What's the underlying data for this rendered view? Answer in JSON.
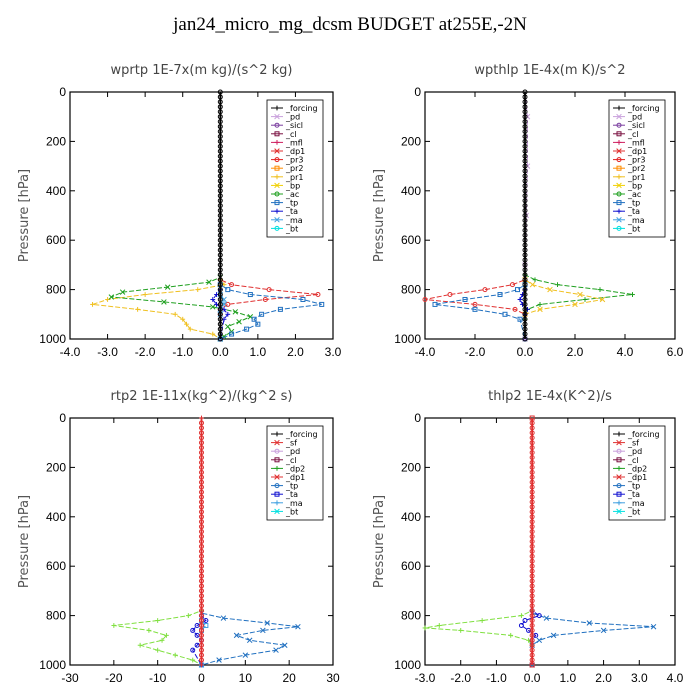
{
  "figure_title": "jan24_micro_mg_dcsm  BUDGET at255E,-2N",
  "colors": {
    "_forcing": "#000000",
    "_pd": "#c9a0dc",
    "_sicl": "#7b3fa0",
    "_cl": "#7a1040",
    "_mfl": "#d02060",
    "_dp1": "#e03030",
    "_pr3": "#e02020",
    "_pr2": "#ff8c00",
    "_pr1": "#f0c020",
    "_bp": "#f0d000",
    "_ac": "#20a020",
    "_tp": "#2070c0",
    "_ta": "#1010d0",
    "_ma": "#40a0e0",
    "_bt": "#00e0e0",
    "_sf": "#e03030",
    "_dp2": "#20a020",
    "_dp1g": "#80e040"
  },
  "chart_data": [
    {
      "type": "line",
      "title": "wprtp  1E-7x(m kg)/(s^2 kg)",
      "ylabel": "Pressure [hPa]",
      "xlim": [
        -4,
        3
      ],
      "ylim": [
        1000,
        0
      ],
      "xticks": [
        "-4.0",
        "-3.0",
        "-2.0",
        "-1.0",
        "0.0",
        "1.0",
        "2.0",
        "3.0"
      ],
      "xtick_values": [
        -4,
        -3,
        -2,
        -1,
        0,
        1,
        2,
        3
      ],
      "yticks": [
        "0",
        "200",
        "400",
        "600",
        "800",
        "1000"
      ],
      "ytick_values": [
        0,
        200,
        400,
        600,
        800,
        1000
      ],
      "legend": [
        "_forcing",
        "_pd",
        "_sicl",
        "_cl",
        "_mfl",
        "_dp1",
        "_pr3",
        "_pr2",
        "_pr1",
        "_bp",
        "_ac",
        "_tp",
        "_ta",
        "_ma",
        "_bt"
      ],
      "series": [
        {
          "name": "_pr1",
          "color": "#f0c020",
          "p": [
            0,
            760,
            780,
            800,
            820,
            840,
            860,
            880,
            900,
            920,
            940,
            960,
            980,
            1000
          ],
          "x": [
            0,
            0,
            0.1,
            -0.6,
            -2.0,
            -3.0,
            -3.4,
            -2.2,
            -1.2,
            -1.0,
            -0.9,
            -0.8,
            -0.2,
            0
          ]
        },
        {
          "name": "_ac",
          "color": "#20a020",
          "p": [
            0,
            750,
            770,
            790,
            810,
            830,
            850,
            870,
            890,
            910,
            930,
            950,
            970,
            990,
            1000
          ],
          "x": [
            0,
            0,
            -0.3,
            -1.4,
            -2.6,
            -2.9,
            -1.5,
            -0.2,
            0.4,
            0.8,
            0.5,
            0.2,
            0.3,
            0.1,
            0
          ]
        },
        {
          "name": "_dp1",
          "color": "#e03030",
          "p": [
            0,
            760,
            780,
            800,
            820,
            840,
            860,
            880,
            900,
            1000
          ],
          "x": [
            0,
            0,
            0.3,
            1.3,
            2.6,
            1.2,
            0.2,
            0,
            0,
            0
          ]
        },
        {
          "name": "_tp",
          "color": "#2070c0",
          "p": [
            0,
            780,
            800,
            820,
            840,
            860,
            880,
            900,
            920,
            940,
            960,
            980,
            1000
          ],
          "x": [
            0,
            0,
            0.2,
            0.8,
            2.2,
            2.7,
            1.6,
            1.1,
            0.9,
            1.0,
            0.7,
            0.3,
            0
          ]
        },
        {
          "name": "_ta",
          "color": "#1010d0",
          "p": [
            0,
            800,
            820,
            840,
            860,
            880,
            900,
            920,
            1000
          ],
          "x": [
            0,
            0,
            -0.1,
            -0.2,
            -0.1,
            0.1,
            0.2,
            0.1,
            0
          ]
        },
        {
          "name": "_ma",
          "color": "#40a0e0",
          "p": [
            0,
            820,
            840,
            860,
            880,
            900,
            1000
          ],
          "x": [
            0,
            0,
            0.1,
            0.1,
            0,
            0,
            0
          ]
        },
        {
          "name": "_forcing",
          "color": "#000000",
          "p": [
            0,
            1000
          ],
          "x": [
            0,
            0
          ]
        }
      ]
    },
    {
      "type": "line",
      "title": "wpthlp  1E-4x(m K)/s^2",
      "ylabel": "Pressure [hPa]",
      "xlim": [
        -4,
        6
      ],
      "ylim": [
        1000,
        0
      ],
      "xticks": [
        "-4.0",
        "-2.0",
        "0.0",
        "2.0",
        "4.0",
        "6.0"
      ],
      "xtick_values": [
        -4,
        -2,
        0,
        2,
        4,
        6
      ],
      "yticks": [
        "0",
        "200",
        "400",
        "600",
        "800",
        "1000"
      ],
      "ytick_values": [
        0,
        200,
        400,
        600,
        800,
        1000
      ],
      "legend": [
        "_forcing",
        "_pd",
        "_sicl",
        "_cl",
        "_mfl",
        "_dp1",
        "_pr3",
        "_pr2",
        "_pr1",
        "_bp",
        "_ac",
        "_tp",
        "_ta",
        "_ma",
        "_bt"
      ],
      "series": [
        {
          "name": "_ac",
          "color": "#20a020",
          "p": [
            0,
            740,
            760,
            780,
            800,
            820,
            840,
            860,
            880,
            900,
            920,
            1000
          ],
          "x": [
            0,
            0,
            0.4,
            1.3,
            3.0,
            4.3,
            2.4,
            0.6,
            0.1,
            0,
            0,
            0
          ]
        },
        {
          "name": "_pr1",
          "color": "#f0c020",
          "p": [
            0,
            760,
            780,
            800,
            820,
            840,
            860,
            880,
            900,
            1000
          ],
          "x": [
            0,
            0,
            0.3,
            1.0,
            2.2,
            3.1,
            2.0,
            0.6,
            0,
            0
          ]
        },
        {
          "name": "_dp1",
          "color": "#e03030",
          "p": [
            0,
            760,
            780,
            800,
            820,
            840,
            860,
            880,
            900,
            1000
          ],
          "x": [
            0,
            0,
            -0.5,
            -1.6,
            -3.0,
            -4.0,
            -2.0,
            -0.4,
            0,
            0
          ]
        },
        {
          "name": "_tp",
          "color": "#2070c0",
          "p": [
            0,
            780,
            800,
            820,
            840,
            860,
            880,
            900,
            920,
            1000
          ],
          "x": [
            0,
            0,
            -0.3,
            -1.0,
            -2.4,
            -3.6,
            -2.0,
            -0.8,
            -0.2,
            0
          ]
        },
        {
          "name": "_ta",
          "color": "#1010d0",
          "p": [
            0,
            800,
            820,
            840,
            860,
            880,
            900,
            1000
          ],
          "x": [
            0,
            0,
            -0.1,
            -0.2,
            -0.1,
            0.1,
            0,
            0
          ]
        },
        {
          "name": "_pd",
          "color": "#c9a0dc",
          "p": [
            0,
            100,
            300,
            500,
            700,
            1000
          ],
          "x": [
            0,
            0.1,
            0.1,
            0.05,
            0,
            0
          ]
        },
        {
          "name": "_forcing",
          "color": "#000000",
          "p": [
            0,
            1000
          ],
          "x": [
            0,
            0
          ]
        }
      ]
    },
    {
      "type": "line",
      "title": "rtp2  1E-11x(kg^2)/(kg^2 s)",
      "ylabel": "Pressure [hPa]",
      "xlim": [
        -30,
        30
      ],
      "ylim": [
        1000,
        0
      ],
      "xticks": [
        "-30",
        "-20",
        "-10",
        "0",
        "10",
        "20",
        "30"
      ],
      "xtick_values": [
        -30,
        -20,
        -10,
        0,
        10,
        20,
        30
      ],
      "yticks": [
        "0",
        "200",
        "400",
        "600",
        "800",
        "1000"
      ],
      "ytick_values": [
        0,
        200,
        400,
        600,
        800,
        1000
      ],
      "legend": [
        "_forcing",
        "_sf",
        "_pd",
        "_cl",
        "_dp2",
        "_dp1",
        "_tp",
        "_ta",
        "_ma",
        "_bt"
      ],
      "series": [
        {
          "name": "_dp1",
          "color": "#80e040",
          "p": [
            0,
            780,
            800,
            820,
            840,
            860,
            880,
            900,
            920,
            940,
            960,
            980,
            1000
          ],
          "x": [
            0,
            0,
            -3,
            -10,
            -20,
            -12,
            -8,
            -9,
            -14,
            -10,
            -6,
            -2,
            0
          ]
        },
        {
          "name": "_tp",
          "color": "#2070c0",
          "p": [
            0,
            790,
            810,
            830,
            845,
            860,
            880,
            900,
            920,
            940,
            960,
            980,
            1000
          ],
          "x": [
            0,
            0,
            5,
            15,
            22,
            14,
            8,
            11,
            19,
            17,
            10,
            4,
            0
          ]
        },
        {
          "name": "_ta",
          "color": "#1010d0",
          "p": [
            0,
            800,
            820,
            840,
            860,
            880,
            900,
            920,
            940,
            1000
          ],
          "x": [
            0,
            0,
            1,
            -1,
            -2,
            -1,
            0,
            -1,
            -2,
            0
          ]
        },
        {
          "name": "_ma",
          "color": "#40a0e0",
          "p": [
            0,
            820,
            840,
            860,
            1000
          ],
          "x": [
            0,
            0,
            1,
            0,
            0
          ]
        },
        {
          "name": "_forcing",
          "color": "#e03030",
          "p": [
            0,
            1000
          ],
          "x": [
            0,
            0
          ]
        }
      ]
    },
    {
      "type": "line",
      "title": "thlp2  1E-4x(K^2)/s",
      "ylabel": "Pressure [hPa]",
      "xlim": [
        -3,
        4
      ],
      "ylim": [
        1000,
        0
      ],
      "xticks": [
        "-3.0",
        "-2.0",
        "-1.0",
        "0.0",
        "1.0",
        "2.0",
        "3.0",
        "4.0"
      ],
      "xtick_values": [
        -3,
        -2,
        -1,
        0,
        1,
        2,
        3,
        4
      ],
      "yticks": [
        "0",
        "200",
        "400",
        "600",
        "800",
        "1000"
      ],
      "ytick_values": [
        0,
        200,
        400,
        600,
        800,
        1000
      ],
      "legend": [
        "_forcing",
        "_sf",
        "_pd",
        "_cl",
        "_dp2",
        "_dp1",
        "_tp",
        "_ta",
        "_ma",
        "_bt"
      ],
      "series": [
        {
          "name": "_dp1",
          "color": "#80e040",
          "p": [
            0,
            780,
            800,
            820,
            840,
            850,
            860,
            880,
            900,
            920,
            1000
          ],
          "x": [
            0,
            0,
            -0.3,
            -1.4,
            -2.6,
            -3.0,
            -2.0,
            -0.6,
            -0.1,
            0,
            0
          ]
        },
        {
          "name": "_tp",
          "color": "#2070c0",
          "p": [
            0,
            790,
            810,
            830,
            845,
            860,
            880,
            900,
            920,
            1000
          ],
          "x": [
            0,
            0,
            0.4,
            1.6,
            3.4,
            2.0,
            0.6,
            0.2,
            0,
            0
          ]
        },
        {
          "name": "_ta",
          "color": "#1010d0",
          "p": [
            0,
            780,
            800,
            820,
            840,
            860,
            880,
            900,
            1000
          ],
          "x": [
            0,
            0,
            0.2,
            -0.2,
            -0.3,
            -0.1,
            0.1,
            0,
            0
          ]
        },
        {
          "name": "_forcing",
          "color": "#e03030",
          "p": [
            0,
            1000
          ],
          "x": [
            0,
            0
          ]
        }
      ]
    }
  ]
}
